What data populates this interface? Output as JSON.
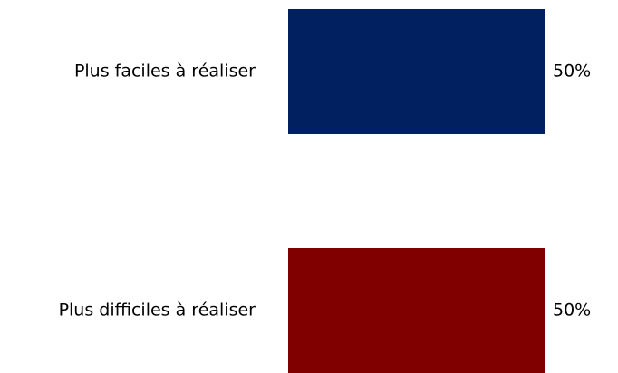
{
  "chart_data": {
    "type": "barh",
    "categories": [
      "Plus faciles à réaliser",
      "Plus difficiles à réaliser"
    ],
    "values": [
      50,
      50
    ],
    "value_labels": [
      "50%",
      "50%"
    ],
    "colors": [
      "#002060",
      "#800000"
    ]
  }
}
